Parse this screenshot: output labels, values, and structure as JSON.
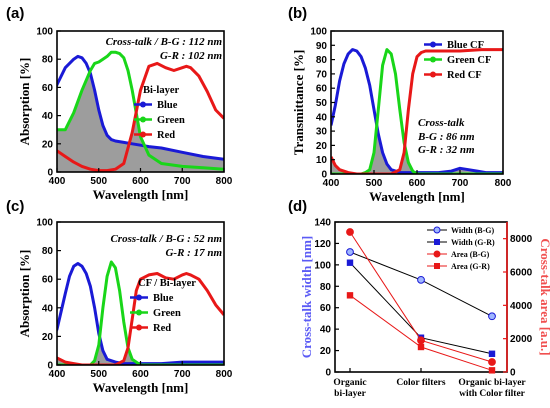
{
  "chart_data": [
    {
      "panel": "(a)",
      "type": "line",
      "xlabel": "Wavelength [nm]",
      "ylabel": "Absorption [%]",
      "xlim": [
        400,
        800
      ],
      "ylim": [
        0,
        100
      ],
      "xticks": [
        400,
        500,
        600,
        700,
        800
      ],
      "yticks": [
        0,
        20,
        40,
        60,
        80,
        100
      ],
      "annotations": [
        "Cross-talk / B-G : 112 nm",
        "G-R : 102 nm"
      ],
      "legend_title": "Bi-layer",
      "legend_position": "right",
      "shaded_overlap": true,
      "series": [
        {
          "name": "Blue",
          "color": "#1a1ad6",
          "x": [
            380,
            400,
            420,
            440,
            450,
            460,
            470,
            480,
            490,
            500,
            510,
            520,
            530,
            540,
            560,
            580,
            600,
            620,
            650,
            700,
            750,
            800
          ],
          "y": [
            48,
            62,
            74,
            80,
            82,
            81,
            77,
            70,
            58,
            44,
            33,
            26,
            23,
            22,
            21,
            20,
            19,
            18,
            17,
            14,
            11,
            9
          ]
        },
        {
          "name": "Green",
          "color": "#19d619",
          "x": [
            380,
            400,
            420,
            440,
            460,
            480,
            490,
            500,
            510,
            520,
            530,
            540,
            550,
            560,
            570,
            580,
            600,
            620,
            650,
            700,
            750,
            800
          ],
          "y": [
            31,
            30,
            30,
            42,
            58,
            72,
            77,
            78,
            80,
            82,
            85,
            85,
            84,
            81,
            72,
            58,
            25,
            12,
            6,
            4,
            3,
            2
          ]
        },
        {
          "name": "Red",
          "color": "#e81818",
          "x": [
            380,
            400,
            420,
            440,
            460,
            480,
            500,
            520,
            540,
            560,
            580,
            600,
            620,
            640,
            660,
            680,
            700,
            710,
            720,
            740,
            760,
            780,
            800
          ],
          "y": [
            17,
            15,
            11,
            7,
            4,
            2,
            1,
            1,
            2,
            6,
            28,
            58,
            75,
            77,
            74,
            72,
            74,
            75,
            74,
            68,
            57,
            44,
            38
          ]
        }
      ]
    },
    {
      "panel": "(b)",
      "type": "line",
      "xlabel": "Wavelength [nm]",
      "ylabel": "Transmittance [%]",
      "xlim": [
        400,
        800
      ],
      "ylim": [
        0,
        100
      ],
      "xticks": [
        400,
        500,
        600,
        700,
        800
      ],
      "yticks": [
        0,
        10,
        20,
        30,
        40,
        50,
        60,
        70,
        80,
        90,
        100
      ],
      "annotations": [
        "Cross-talk",
        "B-G : 86 nm",
        "G-R : 32 nm"
      ],
      "legend_position": "right",
      "shaded_overlap": true,
      "series": [
        {
          "name": "Blue CF",
          "color": "#1a1ad6",
          "x": [
            400,
            410,
            420,
            430,
            440,
            450,
            460,
            470,
            480,
            490,
            500,
            510,
            520,
            530,
            540,
            550,
            560,
            580,
            600,
            650,
            680,
            700,
            720,
            740,
            760,
            780,
            800
          ],
          "y": [
            34,
            48,
            65,
            77,
            84,
            87,
            86,
            82,
            74,
            62,
            45,
            28,
            15,
            7,
            3,
            2,
            1,
            1,
            1,
            1,
            2,
            4,
            3,
            2,
            1,
            1,
            1
          ]
        },
        {
          "name": "Green CF",
          "color": "#19d619",
          "x": [
            400,
            450,
            470,
            480,
            490,
            500,
            510,
            520,
            530,
            540,
            550,
            560,
            570,
            580,
            590,
            600,
            620,
            700,
            800
          ],
          "y": [
            0,
            0,
            0,
            1,
            3,
            15,
            45,
            76,
            87,
            84,
            70,
            45,
            22,
            8,
            2,
            0,
            0,
            0,
            0
          ]
        },
        {
          "name": "Red CF",
          "color": "#e81818",
          "x": [
            400,
            410,
            420,
            440,
            460,
            480,
            500,
            520,
            540,
            560,
            570,
            580,
            590,
            600,
            610,
            620,
            640,
            660,
            700,
            750,
            800
          ],
          "y": [
            12,
            6,
            3,
            1,
            0,
            0,
            0,
            0,
            0,
            3,
            15,
            45,
            70,
            82,
            85,
            86,
            86,
            86,
            86,
            87,
            87
          ]
        }
      ]
    },
    {
      "panel": "(c)",
      "type": "line",
      "xlabel": "Wavelength [nm]",
      "ylabel": "Absorption [%]",
      "xlim": [
        400,
        800
      ],
      "ylim": [
        0,
        100
      ],
      "xticks": [
        400,
        500,
        600,
        700,
        800
      ],
      "yticks": [
        0,
        20,
        40,
        60,
        80,
        100
      ],
      "annotations": [
        "Cross-talk / B-G : 52 nm",
        "G-R : 17 nm"
      ],
      "legend_title": "CF / Bi-layer",
      "legend_position": "right",
      "shaded_overlap": true,
      "series": [
        {
          "name": "Blue",
          "color": "#1a1ad6",
          "x": [
            380,
            400,
            420,
            430,
            440,
            450,
            460,
            470,
            480,
            490,
            500,
            510,
            520,
            540,
            560,
            600,
            650,
            700,
            750,
            800
          ],
          "y": [
            12,
            25,
            50,
            62,
            69,
            71,
            69,
            64,
            55,
            40,
            22,
            10,
            4,
            2,
            1,
            1,
            1,
            2,
            2,
            2
          ]
        },
        {
          "name": "Green",
          "color": "#19d619",
          "x": [
            380,
            460,
            480,
            490,
            500,
            510,
            520,
            530,
            540,
            550,
            560,
            570,
            580,
            600,
            700,
            800
          ],
          "y": [
            0,
            0,
            0,
            3,
            14,
            40,
            62,
            72,
            68,
            52,
            30,
            12,
            4,
            0,
            0,
            0
          ]
        },
        {
          "name": "Red",
          "color": "#e81818",
          "x": [
            380,
            400,
            420,
            440,
            460,
            500,
            540,
            560,
            570,
            580,
            590,
            600,
            620,
            640,
            660,
            680,
            700,
            710,
            720,
            740,
            760,
            780,
            800
          ],
          "y": [
            8,
            5,
            2,
            1,
            0,
            0,
            0,
            3,
            12,
            32,
            52,
            60,
            63,
            64,
            61,
            60,
            63,
            64,
            63,
            60,
            52,
            42,
            35
          ]
        }
      ]
    },
    {
      "panel": "(d)",
      "type": "line",
      "categories": [
        "Organic bi-layer",
        "Color filters",
        "Organic bi-layer with Color filter"
      ],
      "ylabel": "Cross-talk width [nm]",
      "y2label": "Cross-talk area [a.u.]",
      "ylim": [
        0,
        140
      ],
      "y2lim": [
        0,
        9000
      ],
      "yticks": [
        0,
        20,
        40,
        60,
        80,
        100,
        120,
        140
      ],
      "y2ticks": [
        0,
        2000,
        4000,
        6000,
        8000
      ],
      "legend_position": "top-right",
      "series": [
        {
          "name": "Width (B-G)",
          "axis": "left",
          "color": "#1a1ad6",
          "line": "#000000",
          "marker": "circle-hollow",
          "values": [
            112,
            86,
            52
          ]
        },
        {
          "name": "Width (G-R)",
          "axis": "left",
          "color": "#1a1ad6",
          "line": "#000000",
          "marker": "square",
          "values": [
            102,
            32,
            17
          ]
        },
        {
          "name": "Area (B-G)",
          "axis": "right",
          "color": "#e81818",
          "line": "#e81818",
          "marker": "circle",
          "values": [
            8400,
            1900,
            600
          ]
        },
        {
          "name": "Area (G-R)",
          "axis": "right",
          "color": "#e81818",
          "line": "#e81818",
          "marker": "square",
          "values": [
            4600,
            1500,
            100
          ]
        }
      ]
    }
  ],
  "panel_d_category_lines": [
    [
      "Organic",
      "bi-layer"
    ],
    [
      "Color filters"
    ],
    [
      "Organic bi-layer",
      "with Color filter"
    ]
  ],
  "colors": {
    "blue": "#1a1ad6",
    "green": "#19d619",
    "red": "#e81818",
    "shade": "#8c8c8c",
    "left_axis_label": "#5b5bf5",
    "right_axis_label": "#f05050"
  }
}
